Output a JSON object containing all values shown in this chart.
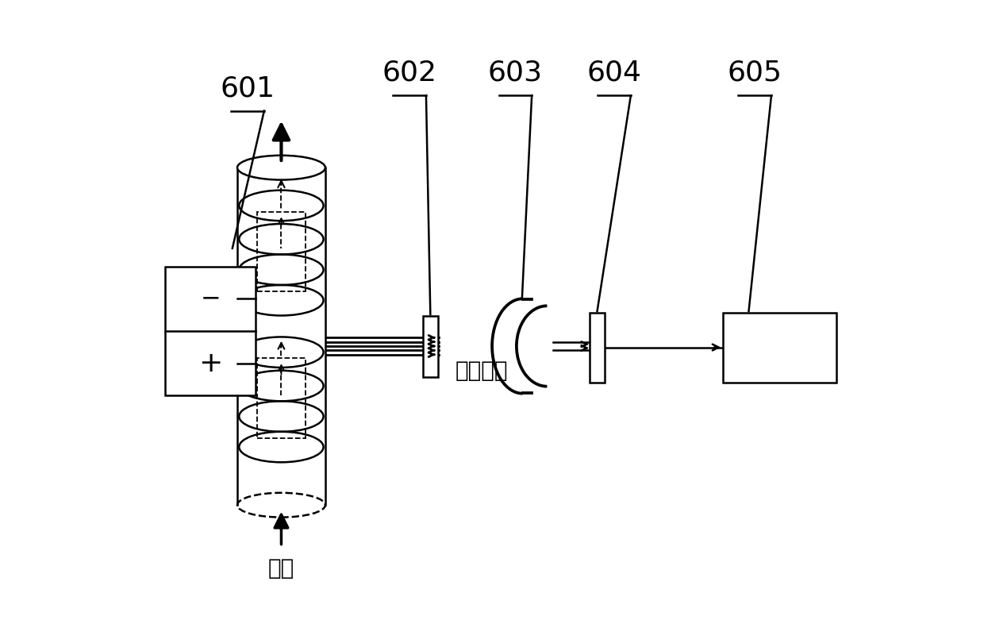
{
  "bg_color": "#ffffff",
  "line_color": "#000000",
  "text_emission": "发射光谱",
  "text_carrier": "载气",
  "label_fontsize": 26,
  "chinese_fontsize": 20,
  "figure_width": 12.4,
  "figure_height": 8.1
}
